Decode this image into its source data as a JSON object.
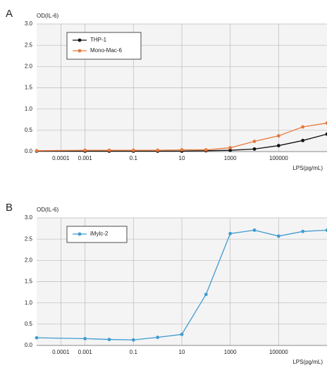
{
  "chart_data": [
    {
      "type": "line",
      "panel": "A",
      "ylabel": "OD(IL-6)",
      "xlabel": "LPS(pg/mL)",
      "xscale": "log",
      "grid": true,
      "legend": "upper left",
      "x": [
        1e-05,
        0.001,
        0.01,
        0.1,
        1,
        10,
        100,
        1000,
        10000,
        100000,
        1000000,
        10000000
      ],
      "xlim": [
        1e-05,
        10000000
      ],
      "xticks": [
        0.0001,
        0.001,
        0.1,
        10,
        1000,
        100000
      ],
      "ylim": [
        0,
        3
      ],
      "yticks": [
        {
          "value": 0,
          "label": "0.0"
        },
        {
          "value": 0.5,
          "label": "0.5"
        },
        {
          "value": 1,
          "label": "1.0"
        },
        {
          "value": 1.5,
          "label": "1.5"
        },
        {
          "value": 2,
          "label": "2.0"
        },
        {
          "value": 2.5,
          "label": "2.5"
        },
        {
          "value": 3,
          "label": "3.0"
        }
      ],
      "series": [
        {
          "name": "THP-1",
          "color": "#111111",
          "values": [
            0.01,
            0.01,
            0.01,
            0.01,
            0.01,
            0.01,
            0.02,
            0.03,
            0.06,
            0.14,
            0.26,
            0.41
          ]
        },
        {
          "name": "Mono-Mac-6",
          "color": "#e8773a",
          "values": [
            0.02,
            0.03,
            0.03,
            0.03,
            0.03,
            0.04,
            0.04,
            0.09,
            0.24,
            0.37,
            0.58,
            0.67
          ]
        }
      ]
    },
    {
      "type": "line",
      "panel": "B",
      "ylabel": "OD(IL-6)",
      "xlabel": "LPS(pg/mL)",
      "xscale": "log",
      "grid": true,
      "legend": "upper left",
      "x": [
        1e-05,
        0.001,
        0.01,
        0.1,
        1,
        10,
        100,
        1000,
        10000,
        100000,
        1000000,
        10000000
      ],
      "xlim": [
        1e-05,
        10000000
      ],
      "xticks": [
        0.0001,
        0.001,
        0.1,
        10,
        1000,
        100000
      ],
      "ylim": [
        0,
        3
      ],
      "yticks": [
        {
          "value": 0,
          "label": "0.0"
        },
        {
          "value": 0.5,
          "label": "0.5"
        },
        {
          "value": 1,
          "label": "1.0"
        },
        {
          "value": 1.5,
          "label": "1.5"
        },
        {
          "value": 2,
          "label": "2.0"
        },
        {
          "value": 2.5,
          "label": "2.5"
        },
        {
          "value": 3,
          "label": "3.0"
        }
      ],
      "series": [
        {
          "name": "iMylc-2",
          "color": "#3f9bd0",
          "values": [
            0.18,
            0.16,
            0.14,
            0.13,
            0.19,
            0.26,
            1.2,
            2.63,
            2.71,
            2.57,
            2.68,
            2.71
          ]
        }
      ]
    }
  ]
}
